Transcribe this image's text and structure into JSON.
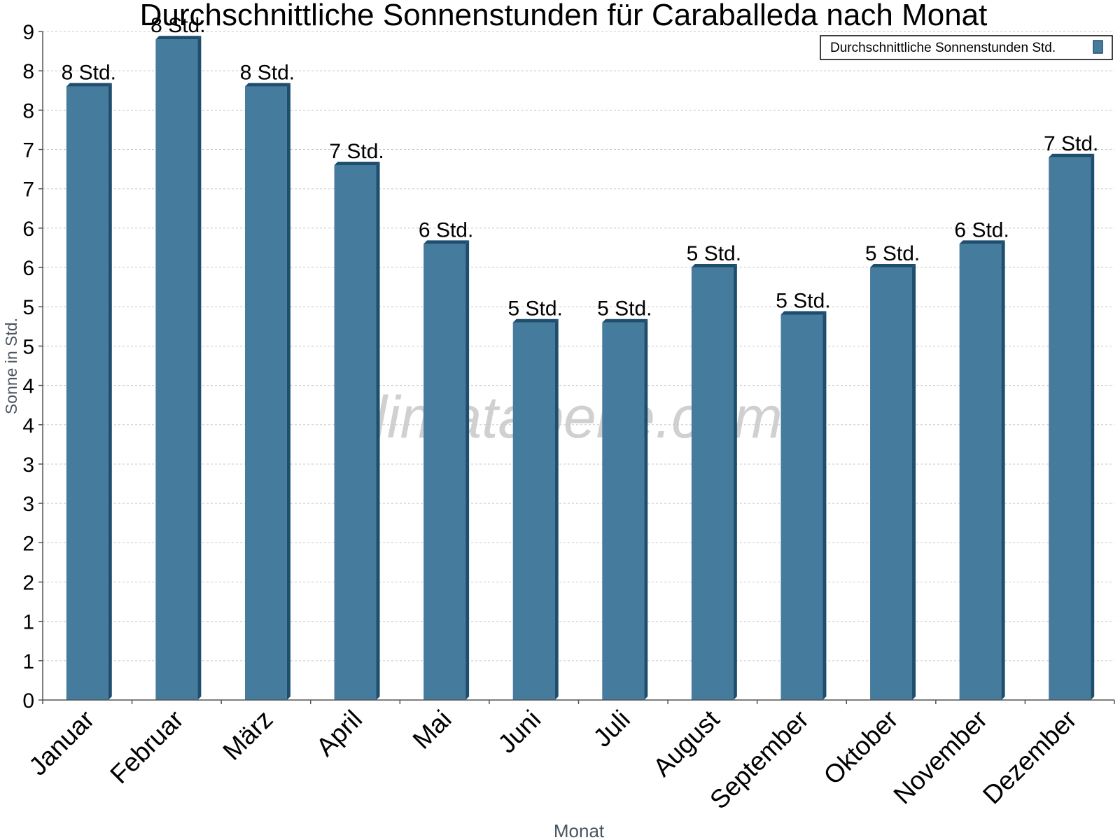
{
  "chart_data": {
    "type": "bar",
    "title": "Durchschnittliche Sonnenstunden für Caraballeda nach Monat",
    "xlabel": "Monat",
    "ylabel": "Sonne in Std.",
    "categories": [
      "Januar",
      "Februar",
      "März",
      "April",
      "Mai",
      "Juni",
      "Juli",
      "August",
      "September",
      "Oktober",
      "November",
      "Dezember"
    ],
    "series": [
      {
        "name": "Durchschnittliche Sonnenstunden Std.",
        "values": [
          7.8,
          8.4,
          7.8,
          6.8,
          5.8,
          4.8,
          4.8,
          5.5,
          4.9,
          5.5,
          5.8,
          6.9
        ],
        "data_labels": [
          "8 Std.",
          "8 Std.",
          "8 Std.",
          "7 Std.",
          "6 Std.",
          "5 Std.",
          "5 Std.",
          "5 Std.",
          "5 Std.",
          "5 Std.",
          "6 Std.",
          "7 Std."
        ]
      }
    ],
    "ylim": [
      0,
      8.5
    ],
    "y_ticks": [
      0,
      0.5,
      1,
      1.5,
      2,
      2.5,
      3,
      3.5,
      4,
      4.5,
      5,
      5.5,
      6,
      6.5,
      7,
      7.5,
      8,
      8.5
    ],
    "y_tick_labels": [
      "0",
      "1",
      "1",
      "2",
      "2",
      "3",
      "3",
      "4",
      "4",
      "5",
      "5",
      "6",
      "6",
      "7",
      "7",
      "8",
      "8",
      "9"
    ],
    "grid": true,
    "legend_position": "top-right",
    "watermark": "klimatabelle.com",
    "colors": {
      "bar": "#457b9d",
      "bar_side": "#1d4e6e",
      "bar_top": "#1d4e6e",
      "grid": "#c8c8c8",
      "axis": "#555555",
      "axis_label": "#4a5560",
      "text": "#000000",
      "watermark": "#c8c8c8"
    }
  }
}
